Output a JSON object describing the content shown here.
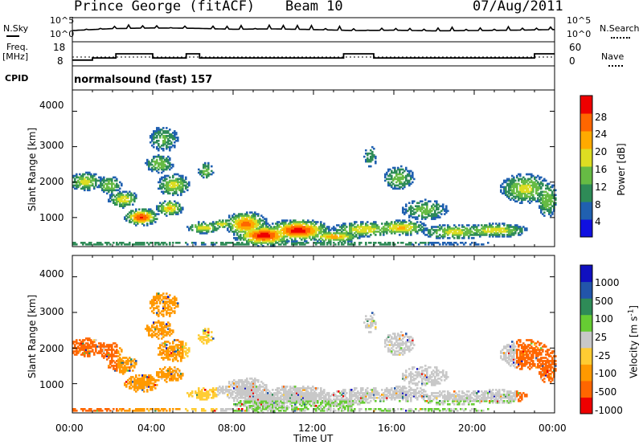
{
  "header": {
    "station": "Prince George (fitACF)",
    "beam": "Beam 10",
    "date": "07/Aug/2011"
  },
  "panels": {
    "nsky_label": "N.Sky",
    "nsearch_label": "N.Search",
    "nsky_ticks": [
      "10^5",
      "10^0"
    ],
    "nsearch_ticks": [
      "10^5",
      "10^0"
    ],
    "freq_label_1": "Freq.",
    "freq_label_2": "[MHz]",
    "freq_ticks": [
      "18",
      "8"
    ],
    "nave_label": "Nave",
    "nave_ticks": [
      "60",
      "0"
    ],
    "cpid_label": "CPID",
    "cpid_value": "normalsound (fast) 157"
  },
  "colors": {
    "power": [
      "#1010e0",
      "#2060b0",
      "#2e8b57",
      "#66bb44",
      "#dddd22",
      "#ffaa00",
      "#ff6600",
      "#ee0000"
    ],
    "velocity": [
      "#ee0000",
      "#ff6600",
      "#ff9900",
      "#ffcc33",
      "#c8c8c8",
      "#66cc33",
      "#2e8b57",
      "#2255aa",
      "#1010c0"
    ]
  },
  "chart_data": [
    {
      "type": "line",
      "name": "N.Sky / N.Search",
      "x": [
        "00:00",
        "02:00",
        "04:00",
        "06:00",
        "08:00",
        "10:00",
        "12:00",
        "14:00",
        "16:00",
        "18:00",
        "20:00",
        "22:00",
        "24:00"
      ],
      "values": [
        2.5,
        3.1,
        3.3,
        3.2,
        2.9,
        3.0,
        2.8,
        2.5,
        2.6,
        2.4,
        2.5,
        2.6,
        2.8
      ]
    },
    {
      "type": "line",
      "name": "Freq.",
      "x": [
        "00:00",
        "01:00",
        "01:00",
        "02:10",
        "02:10",
        "04:00",
        "04:00",
        "05:40",
        "05:40",
        "06:20",
        "06:20",
        "13:30",
        "13:30",
        "15:00",
        "15:00",
        "23:00",
        "23:00",
        "24:00"
      ],
      "values": [
        10,
        10,
        11,
        11,
        13,
        13,
        11,
        11,
        13,
        13,
        11,
        11,
        13,
        13,
        11,
        11,
        13,
        13
      ],
      "ylim": [
        8,
        18
      ]
    },
    {
      "type": "heatmap",
      "name": "Power",
      "ylabel": "Slant Range [km]",
      "colorbar_label": "Power [dB]",
      "colorbar_ticks": [
        "28",
        "24",
        "20",
        "16",
        "12",
        "8",
        "4"
      ],
      "y_ticks": [
        "4000",
        "3000",
        "2000",
        "1000"
      ],
      "ylim": [
        180,
        4600
      ],
      "vlim": [
        0,
        32
      ]
    },
    {
      "type": "heatmap",
      "name": "Velocity",
      "ylabel": "Slant Range [km]",
      "colorbar_label": "Velocity [m s",
      "colorbar_sup": "-1",
      "colorbar_ticks": [
        "1000",
        "500",
        "100",
        "25",
        "-25",
        "-100",
        "-500",
        "-1000"
      ],
      "y_ticks": [
        "4000",
        "3000",
        "2000",
        "1000"
      ],
      "ylim": [
        180,
        4600
      ]
    }
  ],
  "xaxis": {
    "ticks": [
      "00:00",
      "04:00",
      "08:00",
      "12:00",
      "16:00",
      "20:00",
      "00:00"
    ],
    "label": "Time UT"
  }
}
